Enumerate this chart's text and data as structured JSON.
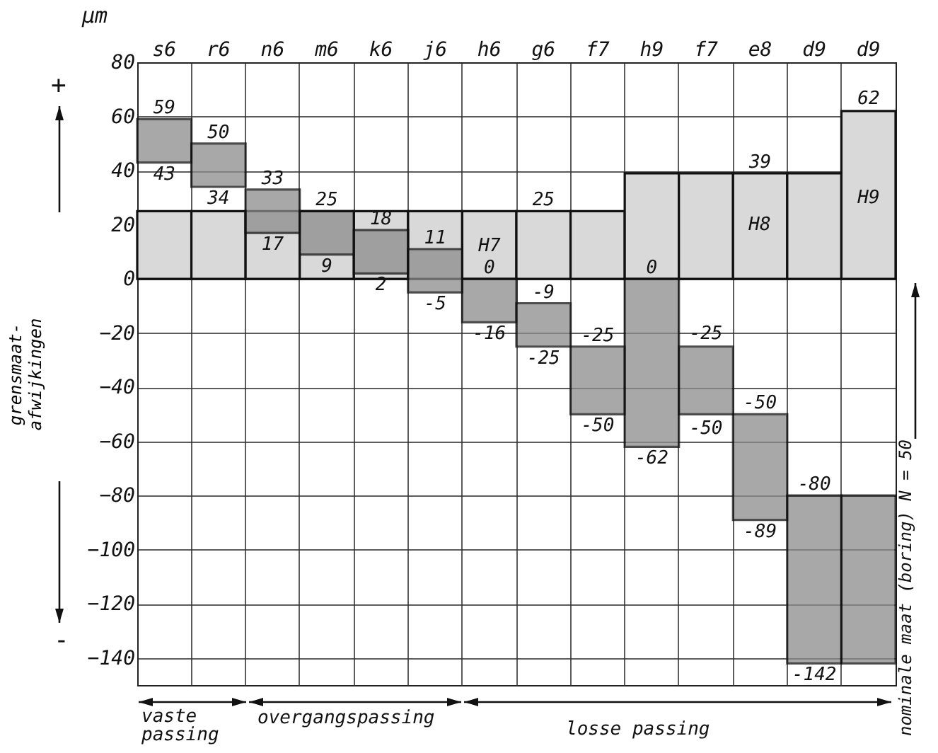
{
  "chart_data": {
    "type": "bar",
    "ylabel": "grensmaat-afwijkingen",
    "categories": [
      "s6",
      "r6",
      "n6",
      "m6",
      "k6",
      "j6",
      "h6",
      "g6",
      "f7",
      "h9",
      "f7",
      "e8",
      "d9",
      "d9"
    ],
    "series": [
      {
        "color": "#d9d9d9",
        "base": [
          0,
          0,
          0,
          0,
          0,
          0,
          0,
          0,
          0,
          0,
          0,
          0,
          0,
          0
        ],
        "values": [
          25,
          25,
          25,
          25,
          25,
          25,
          25,
          25,
          25,
          39,
          39,
          39,
          39,
          62
        ]
      },
      {
        "color": "#8c8c8c",
        "base": [
          43,
          34,
          17,
          9,
          2,
          -5,
          -16,
          -25,
          -50,
          -62,
          -50,
          -89,
          -142,
          -142
        ],
        "values": [
          16,
          16,
          16,
          16,
          16,
          16,
          16,
          16,
          25,
          62,
          25,
          39,
          62,
          62
        ]
      }
    ],
    "ylim": [
      -150,
      80
    ],
    "yticks": [
      -140,
      -120,
      -100,
      -80,
      -60,
      -40,
      -20,
      0,
      20,
      40,
      60,
      80
    ],
    "grid": true,
    "annotations": [
      "µm",
      "+",
      "-",
      "nominale maat (boring) N = 50",
      "vaste passing",
      "overgangspassing",
      "losse passing",
      "H7",
      "-25",
      "-50",
      "H8",
      "62",
      "H9",
      {
        "text": "59",
        "x": "s6",
        "y": 59
      },
      {
        "text": "43",
        "x": "s6",
        "y": 43
      },
      {
        "text": "50",
        "x": "r6",
        "y": 50
      },
      {
        "text": "34",
        "x": "r6",
        "y": 34
      },
      {
        "text": "33",
        "x": "n6",
        "y": 33
      },
      {
        "text": "17",
        "x": "n6",
        "y": 17
      },
      {
        "text": "25",
        "x": "m6",
        "y": 25
      },
      {
        "text": "9",
        "x": "m6",
        "y": 9
      },
      {
        "text": "18",
        "x": "k6",
        "y": 18
      },
      {
        "text": "2",
        "x": "k6",
        "y": 2
      },
      {
        "text": "11",
        "x": "j6",
        "y": 11
      },
      {
        "text": "-5",
        "x": "j6",
        "y": -5
      },
      {
        "text": "0",
        "x": "h6",
        "y": 0
      },
      {
        "text": "-16",
        "x": "h6",
        "y": -16
      },
      {
        "text": "25",
        "x": "g6",
        "y": 25
      },
      {
        "text": "-9",
        "x": "g6",
        "y": -9
      },
      {
        "text": "-25",
        "x": "g6",
        "y": -25
      },
      {
        "text": "-25",
        "x": "f7",
        "y": -25
      },
      {
        "text": "-50",
        "x": "f7",
        "y": -50
      },
      {
        "text": "0",
        "x": "h9",
        "y": 0
      },
      {
        "text": "-62",
        "x": "h9",
        "y": -62
      },
      {
        "text": "39",
        "x": "e8",
        "y": 39
      },
      {
        "text": "-50",
        "x": "e8",
        "y": -50
      },
      {
        "text": "-89",
        "x": "e8",
        "y": -89
      },
      {
        "text": "-80",
        "x": "d9",
        "y": -80
      },
      {
        "text": "-142",
        "x": "d9",
        "y": -142
      }
    ]
  }
}
